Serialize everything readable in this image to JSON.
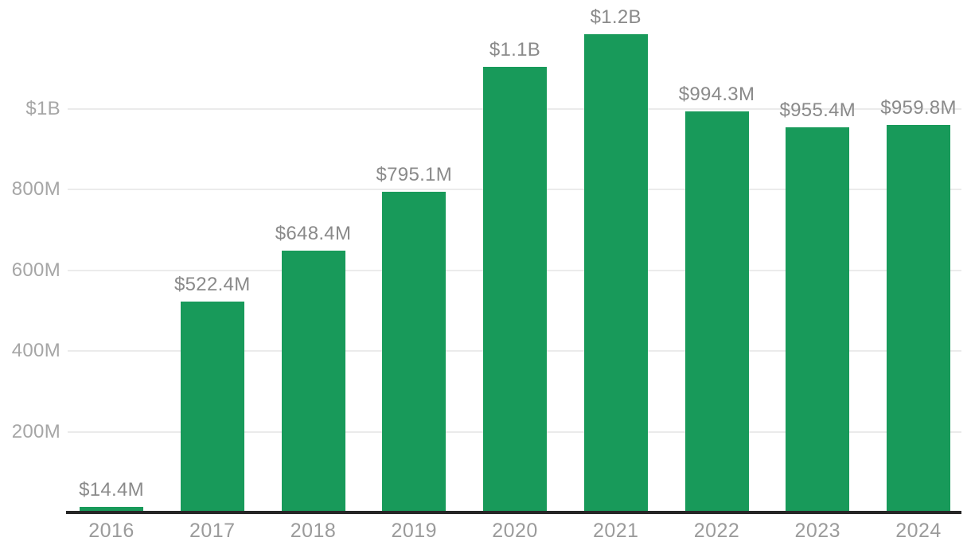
{
  "chart_data": {
    "type": "bar",
    "title": "",
    "xlabel": "",
    "ylabel": "",
    "unit": "USD",
    "categories": [
      "2016",
      "2017",
      "2018",
      "2019",
      "2020",
      "2021",
      "2022",
      "2023",
      "2024"
    ],
    "values_usd_millions": [
      14.4,
      522.4,
      648.4,
      795.1,
      1105,
      1185,
      994.3,
      955.4,
      959.8
    ],
    "bar_labels": [
      "$14.4M",
      "$522.4M",
      "$648.4M",
      "$795.1M",
      "$1.1B",
      "$1.2B",
      "$994.3M",
      "$955.4M",
      "$959.8M"
    ],
    "y_axis": {
      "range_millions": [
        0,
        1250
      ],
      "ticks": [
        {
          "value": 1000,
          "label": "$1B"
        },
        {
          "value": 800,
          "label": "800M"
        },
        {
          "value": 600,
          "label": "600M"
        },
        {
          "value": 400,
          "label": "400M"
        },
        {
          "value": 200,
          "label": "200M"
        }
      ]
    },
    "grid": "horizontal",
    "legend": "none",
    "colors": {
      "bar": "#189a5a",
      "axis_line": "#262626",
      "gridline": "#ebebeb",
      "tick_label": "#a6a6a6",
      "bar_label": "#8a8a8a",
      "year_label": "#9b9b9b",
      "background": "#ffffff"
    }
  }
}
